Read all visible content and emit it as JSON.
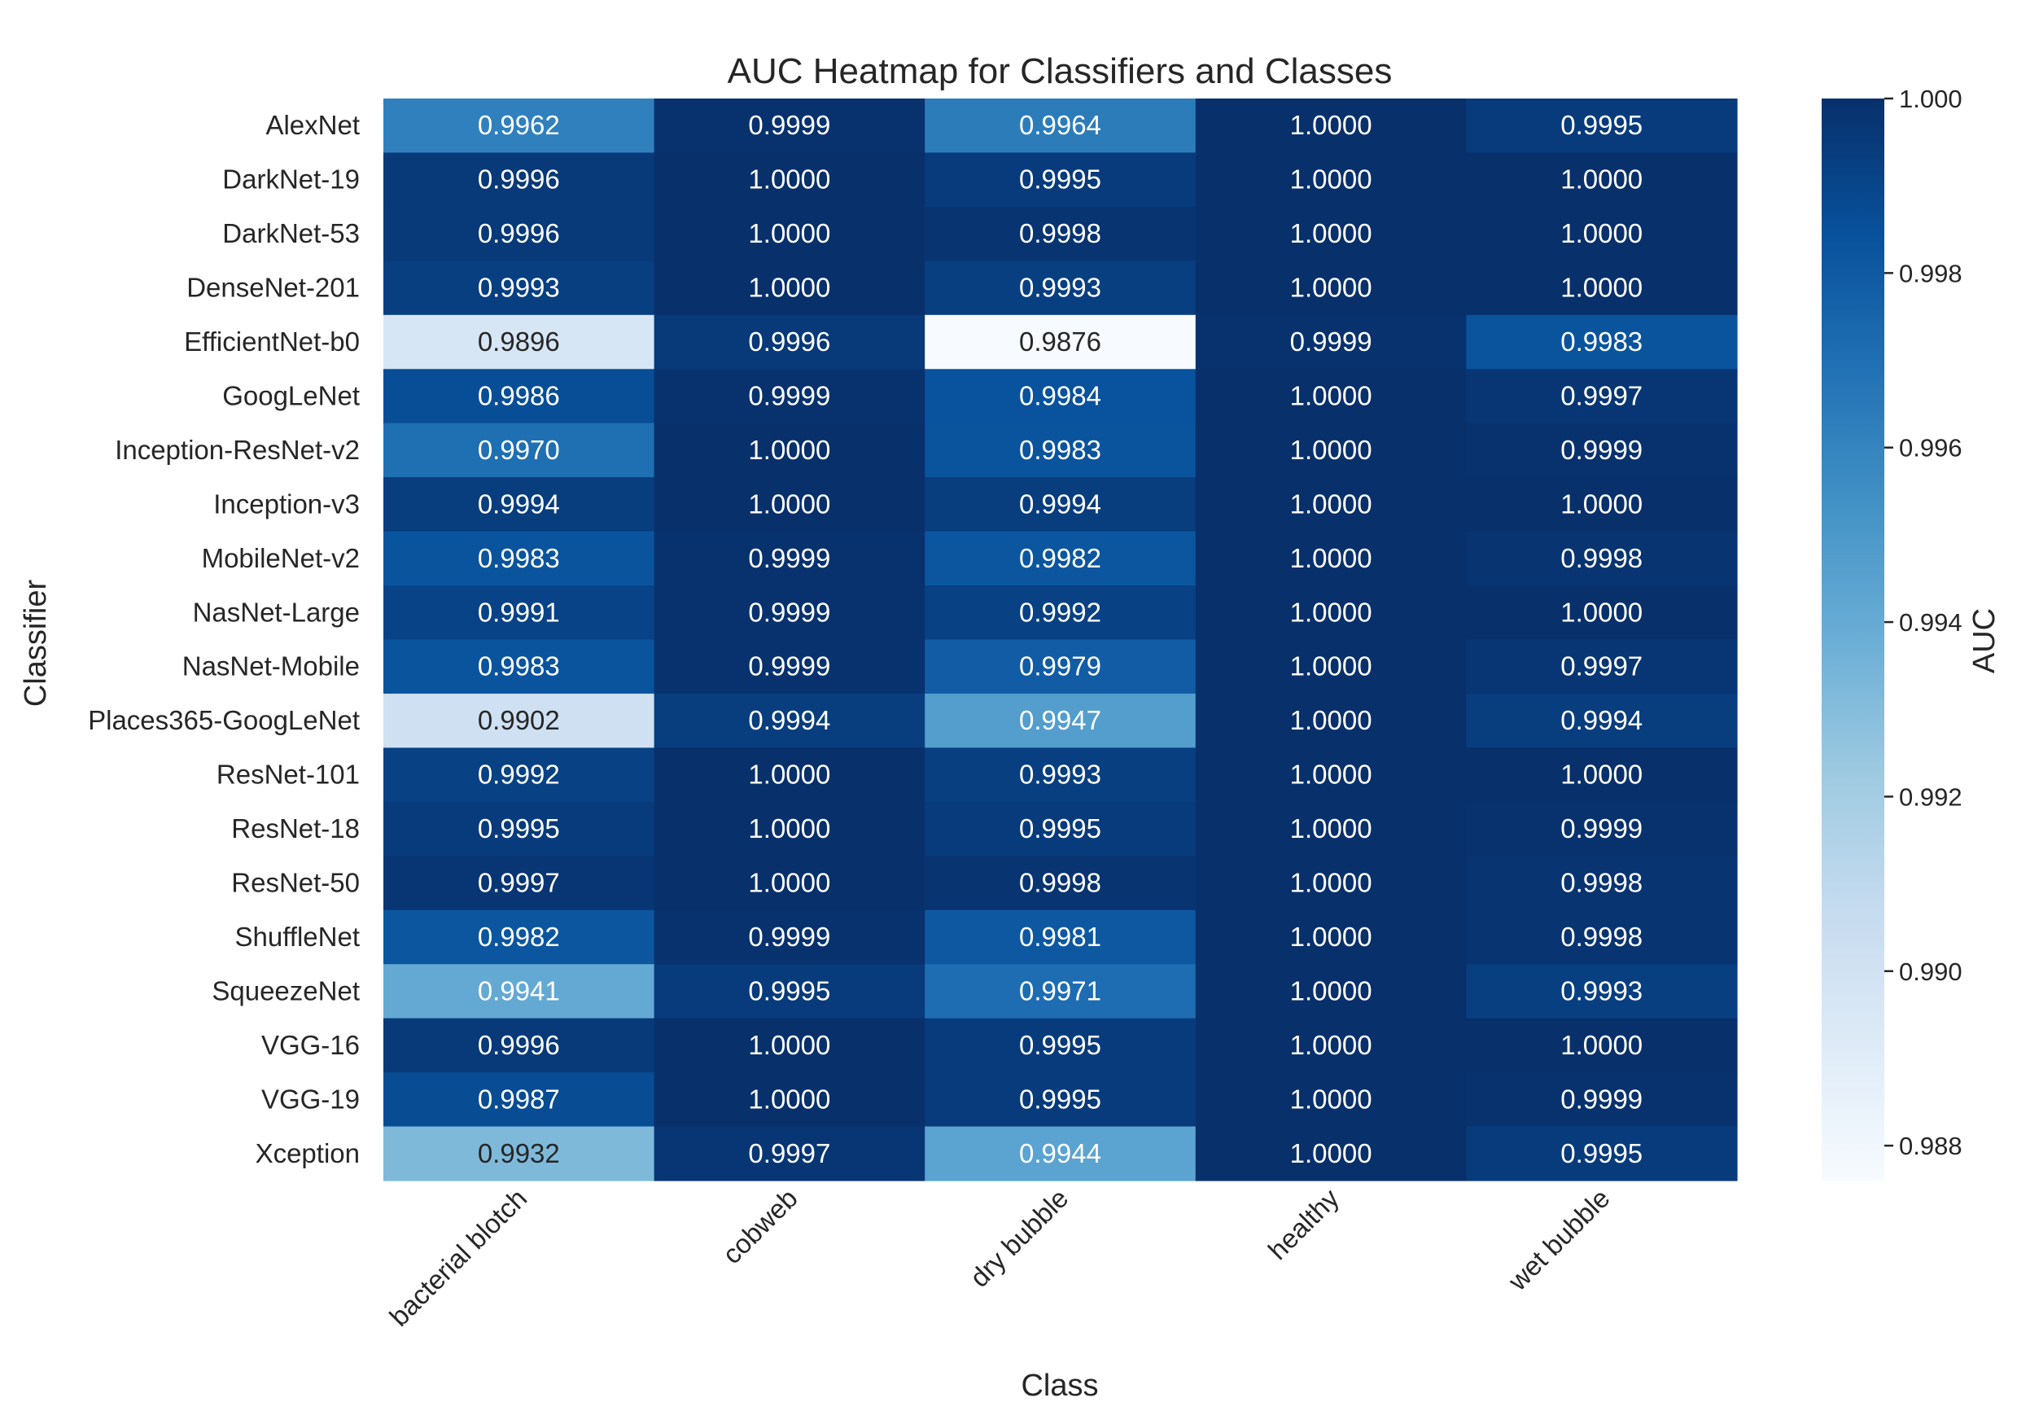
{
  "chart_data": {
    "type": "heatmap",
    "title": "AUC Heatmap for Classifiers and Classes",
    "xlabel": "Class",
    "ylabel": "Classifier",
    "colorbar_label": "AUC",
    "colormap": "Blues",
    "vmin": 0.9876,
    "vmax": 1.0,
    "colorbar_ticks": [
      "0.988",
      "0.990",
      "0.992",
      "0.994",
      "0.996",
      "0.998",
      "1.000"
    ],
    "columns": [
      "bacterial blotch",
      "cobweb",
      "dry bubble",
      "healthy",
      "wet bubble"
    ],
    "rows": [
      "AlexNet",
      "DarkNet-19",
      "DarkNet-53",
      "DenseNet-201",
      "EfficientNet-b0",
      "GoogLeNet",
      "Inception-ResNet-v2",
      "Inception-v3",
      "MobileNet-v2",
      "NasNet-Large",
      "NasNet-Mobile",
      "Places365-GoogLeNet",
      "ResNet-101",
      "ResNet-18",
      "ResNet-50",
      "ShuffleNet",
      "SqueezeNet",
      "VGG-16",
      "VGG-19",
      "Xception"
    ],
    "values": [
      [
        0.9962,
        0.9999,
        0.9964,
        1.0,
        0.9995
      ],
      [
        0.9996,
        1.0,
        0.9995,
        1.0,
        1.0
      ],
      [
        0.9996,
        1.0,
        0.9998,
        1.0,
        1.0
      ],
      [
        0.9993,
        1.0,
        0.9993,
        1.0,
        1.0
      ],
      [
        0.9896,
        0.9996,
        0.9876,
        0.9999,
        0.9983
      ],
      [
        0.9986,
        0.9999,
        0.9984,
        1.0,
        0.9997
      ],
      [
        0.997,
        1.0,
        0.9983,
        1.0,
        0.9999
      ],
      [
        0.9994,
        1.0,
        0.9994,
        1.0,
        1.0
      ],
      [
        0.9983,
        0.9999,
        0.9982,
        1.0,
        0.9998
      ],
      [
        0.9991,
        0.9999,
        0.9992,
        1.0,
        1.0
      ],
      [
        0.9983,
        0.9999,
        0.9979,
        1.0,
        0.9997
      ],
      [
        0.9902,
        0.9994,
        0.9947,
        1.0,
        0.9994
      ],
      [
        0.9992,
        1.0,
        0.9993,
        1.0,
        1.0
      ],
      [
        0.9995,
        1.0,
        0.9995,
        1.0,
        0.9999
      ],
      [
        0.9997,
        1.0,
        0.9998,
        1.0,
        0.9998
      ],
      [
        0.9982,
        0.9999,
        0.9981,
        1.0,
        0.9998
      ],
      [
        0.9941,
        0.9995,
        0.9971,
        1.0,
        0.9993
      ],
      [
        0.9996,
        1.0,
        0.9995,
        1.0,
        1.0
      ],
      [
        0.9987,
        1.0,
        0.9995,
        1.0,
        0.9999
      ],
      [
        0.9932,
        0.9997,
        0.9944,
        1.0,
        0.9995
      ]
    ],
    "grid": false,
    "annotations_format": "4 decimals"
  }
}
